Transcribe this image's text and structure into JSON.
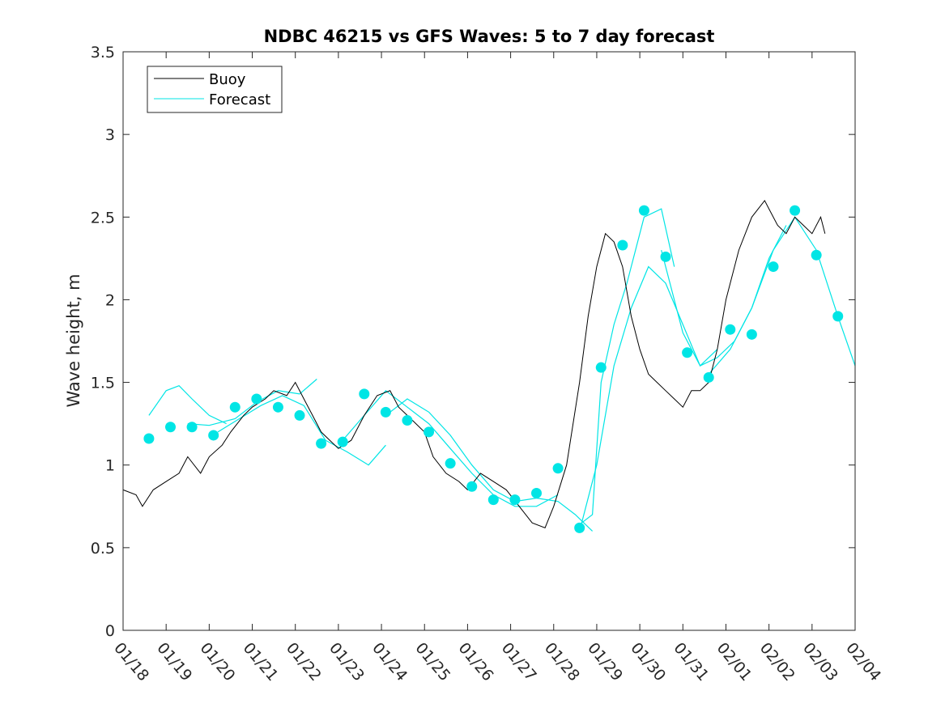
{
  "chart_data": {
    "type": "line",
    "title": "NDBC 46215 vs GFS Waves: 5 to 7 day forecast",
    "xlabel": "",
    "ylabel": "Wave height, m",
    "xlim": [
      0,
      17
    ],
    "ylim": [
      0,
      3.5
    ],
    "grid": false,
    "legend_position": "top-left",
    "x_tick_labels": [
      "01/18",
      "01/19",
      "01/20",
      "01/21",
      "01/22",
      "01/23",
      "01/24",
      "01/25",
      "01/26",
      "01/27",
      "01/28",
      "01/29",
      "01/30",
      "01/31",
      "02/01",
      "02/02",
      "02/03",
      "02/04"
    ],
    "y_ticks": [
      0,
      0.5,
      1,
      1.5,
      2,
      2.5,
      3,
      3.5
    ],
    "y_tick_labels": [
      "0",
      "0.5",
      "1",
      "1.5",
      "2",
      "2.5",
      "3",
      "3.5"
    ],
    "colors": {
      "buoy": "#000000",
      "forecast": "#00e5e5",
      "axes": "#262626"
    },
    "series": [
      {
        "name": "Buoy",
        "note": "x in days since 01/18 00:00, y in m (noisy observed record)",
        "x": [
          0.0,
          0.3,
          0.45,
          0.7,
          1.0,
          1.3,
          1.5,
          1.8,
          2.0,
          2.3,
          2.5,
          2.8,
          3.0,
          3.3,
          3.5,
          3.8,
          4.0,
          4.2,
          4.4,
          4.6,
          4.8,
          5.0,
          5.3,
          5.6,
          5.9,
          6.2,
          6.4,
          6.6,
          6.8,
          7.0,
          7.2,
          7.5,
          7.8,
          8.0,
          8.3,
          8.6,
          8.9,
          9.2,
          9.5,
          9.8,
          10.0,
          10.3,
          10.6,
          10.8,
          11.0,
          11.2,
          11.4,
          11.6,
          11.8,
          12.0,
          12.2,
          12.4,
          12.6,
          12.8,
          13.0,
          13.2,
          13.4,
          13.6,
          13.8,
          14.0,
          14.3,
          14.6,
          14.9,
          15.0,
          15.2,
          15.4,
          15.6,
          15.8,
          16.0,
          16.2,
          16.3
        ],
        "y": [
          0.85,
          0.82,
          0.75,
          0.85,
          0.9,
          0.95,
          1.05,
          0.95,
          1.05,
          1.12,
          1.2,
          1.3,
          1.35,
          1.4,
          1.45,
          1.42,
          1.5,
          1.4,
          1.3,
          1.2,
          1.15,
          1.1,
          1.15,
          1.3,
          1.42,
          1.45,
          1.35,
          1.3,
          1.25,
          1.2,
          1.05,
          0.95,
          0.9,
          0.85,
          0.95,
          0.9,
          0.85,
          0.75,
          0.65,
          0.62,
          0.75,
          1.0,
          1.5,
          1.9,
          2.2,
          2.4,
          2.35,
          2.2,
          1.9,
          1.7,
          1.55,
          1.5,
          1.45,
          1.4,
          1.35,
          1.45,
          1.45,
          1.5,
          1.7,
          2.0,
          2.3,
          2.5,
          2.6,
          2.55,
          2.45,
          2.4,
          2.5,
          2.45,
          2.4,
          2.5,
          2.4
        ]
      },
      {
        "name": "Forecast",
        "note": "cyan lines (several forecast runs) with markers at each 5-7 day verification point",
        "runs": [
          {
            "x": [
              0.6,
              1.0,
              1.3,
              1.6,
              2.0,
              2.4
            ],
            "y": [
              1.3,
              1.45,
              1.48,
              1.4,
              1.3,
              1.25
            ]
          },
          {
            "x": [
              1.5,
              2.0,
              2.6,
              3.1,
              3.6,
              4.1,
              4.5
            ],
            "y": [
              1.25,
              1.24,
              1.28,
              1.38,
              1.45,
              1.43,
              1.52
            ]
          },
          {
            "x": [
              2.2,
              2.7,
              3.2,
              3.7,
              4.2,
              4.7,
              5.2,
              5.7,
              6.1
            ],
            "y": [
              1.2,
              1.28,
              1.36,
              1.42,
              1.36,
              1.15,
              1.08,
              1.0,
              1.12
            ]
          },
          {
            "x": [
              5.1,
              5.6,
              6.1,
              6.6,
              7.1,
              7.6,
              8.1,
              8.6,
              9.1,
              9.6,
              10.1
            ],
            "y": [
              1.15,
              1.3,
              1.45,
              1.35,
              1.25,
              1.1,
              0.95,
              0.82,
              0.75,
              0.75,
              0.82
            ]
          },
          {
            "x": [
              6.1,
              6.6,
              7.1,
              7.6,
              8.1,
              8.6,
              9.1,
              9.6,
              10.1,
              10.5,
              10.9
            ],
            "y": [
              1.3,
              1.4,
              1.32,
              1.18,
              1.0,
              0.85,
              0.78,
              0.8,
              0.78,
              0.7,
              0.6
            ]
          },
          {
            "x": [
              10.5,
              10.9,
              11.1,
              11.4,
              11.7,
              12.1,
              12.5,
              12.8
            ],
            "y": [
              0.62,
              0.7,
              1.5,
              1.85,
              2.1,
              2.5,
              2.55,
              2.2
            ]
          },
          {
            "x": [
              10.6,
              11.0,
              11.4,
              11.8,
              12.2,
              12.6,
              13.0,
              13.4,
              13.8
            ],
            "y": [
              0.6,
              1.0,
              1.6,
              1.95,
              2.2,
              2.1,
              1.85,
              1.6,
              1.7
            ]
          },
          {
            "x": [
              12.5,
              13.0,
              13.4,
              13.8,
              14.2,
              14.6,
              15.0,
              15.4
            ],
            "y": [
              2.3,
              1.8,
              1.6,
              1.65,
              1.75,
              1.95,
              2.25,
              2.45
            ]
          },
          {
            "x": [
              13.6,
              14.1,
              14.6,
              15.1,
              15.6,
              16.1,
              16.6,
              17.0
            ],
            "y": [
              1.55,
              1.7,
              1.95,
              2.3,
              2.5,
              2.3,
              1.9,
              1.6
            ]
          }
        ],
        "markers": {
          "x": [
            0.6,
            1.1,
            1.6,
            2.1,
            2.6,
            3.1,
            3.6,
            4.1,
            4.6,
            5.1,
            5.6,
            6.1,
            6.6,
            7.1,
            7.6,
            8.1,
            8.6,
            9.1,
            9.6,
            10.1,
            10.6,
            11.1,
            11.6,
            12.1,
            12.6,
            13.1,
            13.6,
            14.1,
            14.6,
            15.1,
            15.6,
            16.1,
            16.6
          ],
          "y": [
            1.16,
            1.23,
            1.23,
            1.18,
            1.35,
            1.4,
            1.35,
            1.3,
            1.13,
            1.14,
            1.43,
            1.32,
            1.27,
            1.2,
            1.01,
            0.87,
            0.79,
            0.79,
            0.83,
            0.98,
            0.62,
            1.59,
            2.33,
            2.54,
            2.26,
            1.68,
            1.53,
            1.82,
            1.79,
            2.2,
            2.54,
            2.27,
            1.9
          ]
        }
      }
    ],
    "legend": [
      "Buoy",
      "Forecast"
    ]
  }
}
